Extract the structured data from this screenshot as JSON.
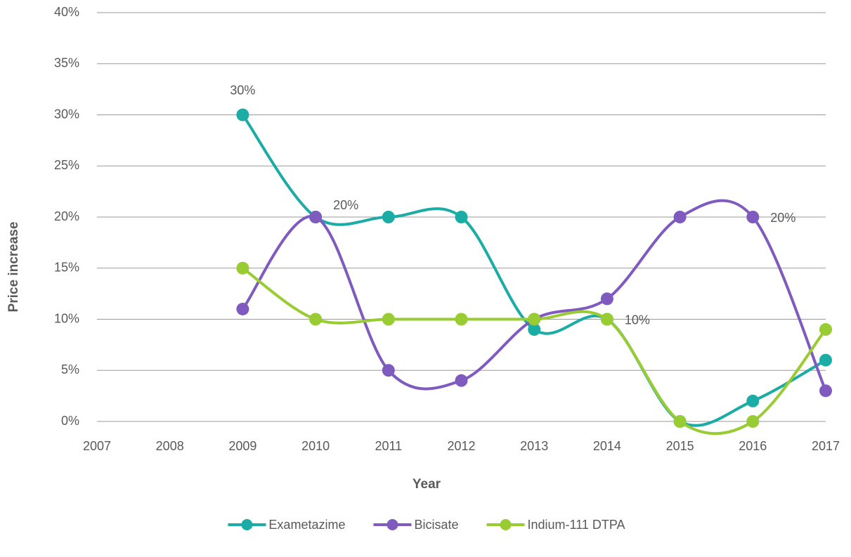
{
  "chart_data": {
    "type": "line",
    "x_label": "Year",
    "y_label": "Price increase",
    "x": [
      2009,
      2010,
      2011,
      2012,
      2013,
      2014,
      2015,
      2016,
      2017
    ],
    "xlim": [
      2007,
      2017
    ],
    "xticks": [
      2007,
      2008,
      2009,
      2010,
      2011,
      2012,
      2013,
      2014,
      2015,
      2016,
      2017
    ],
    "ylim": [
      0,
      40
    ],
    "yticks": [
      {
        "value": 0,
        "label": "0%"
      },
      {
        "value": 5,
        "label": "5%"
      },
      {
        "value": 10,
        "label": "10%"
      },
      {
        "value": 15,
        "label": "15%"
      },
      {
        "value": 20,
        "label": "20%"
      },
      {
        "value": 25,
        "label": "25%"
      },
      {
        "value": 30,
        "label": "30%"
      },
      {
        "value": 35,
        "label": "35%"
      },
      {
        "value": 40,
        "label": "40%"
      }
    ],
    "grid": true,
    "smooth": true,
    "legend": "bottom",
    "series": [
      {
        "name": "Exametazime",
        "color": "#1aaca5",
        "values": [
          30,
          20,
          20,
          20,
          9,
          10,
          0,
          2,
          6
        ],
        "value_labels": [
          "30%",
          null,
          null,
          null,
          null,
          null,
          null,
          null,
          null
        ]
      },
      {
        "name": "Bicisate",
        "color": "#7f5bc0",
        "values": [
          11,
          20,
          5,
          4,
          10,
          12,
          20,
          20,
          3
        ],
        "value_labels": [
          null,
          "20%",
          null,
          null,
          null,
          null,
          null,
          "20%",
          null
        ]
      },
      {
        "name": "Indium-111 DTPA",
        "color": "#99cc33",
        "values": [
          15,
          10,
          10,
          10,
          10,
          10,
          0,
          0,
          9
        ],
        "value_labels": [
          null,
          null,
          null,
          null,
          null,
          "10%",
          null,
          null,
          null
        ]
      }
    ]
  }
}
